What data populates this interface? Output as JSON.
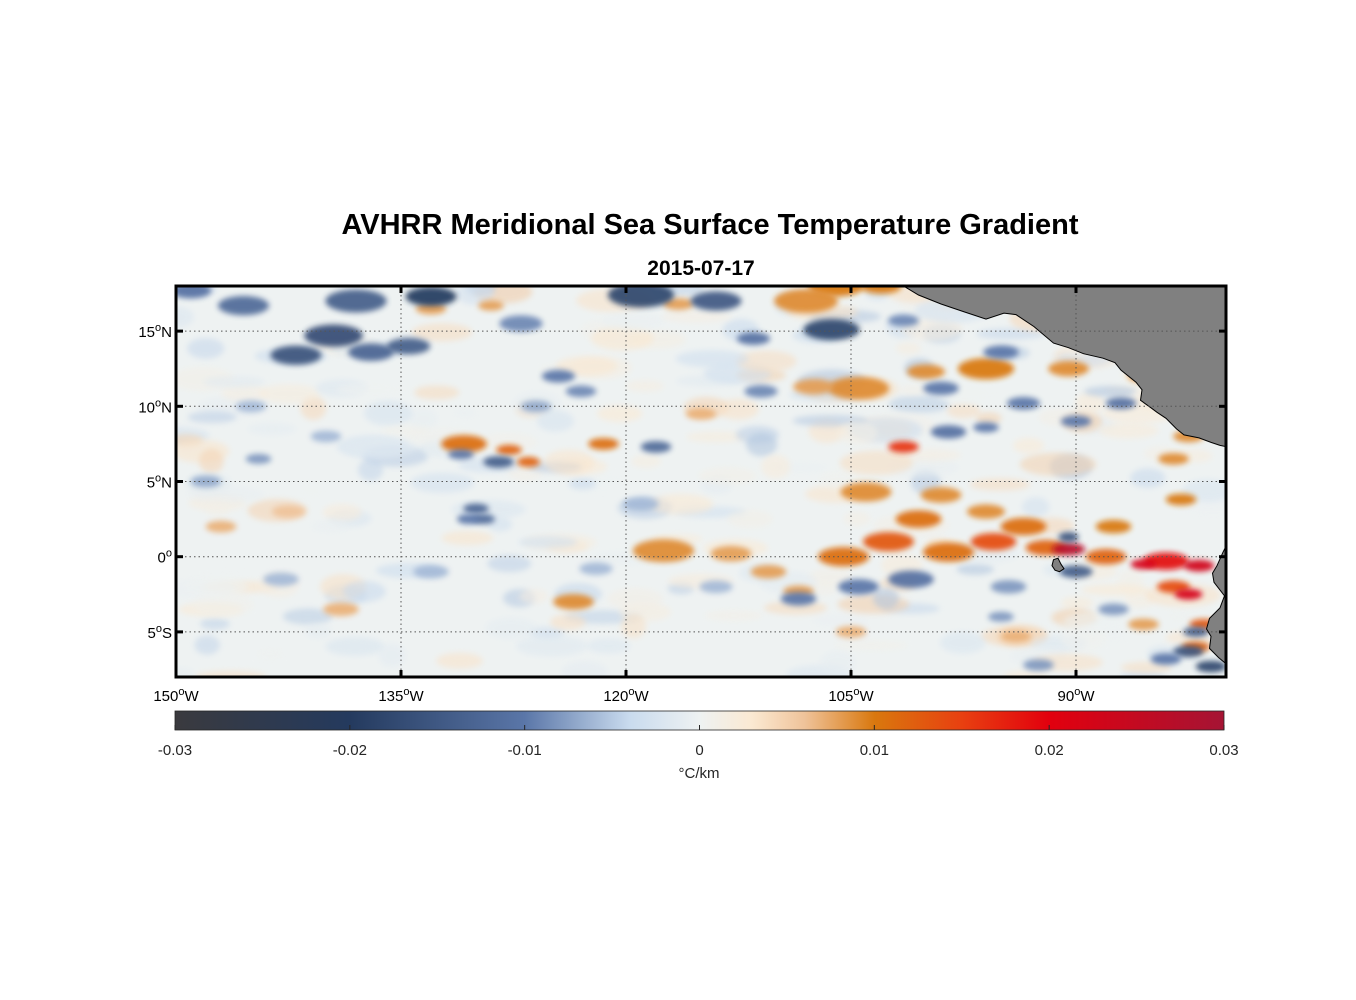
{
  "title": "AVHRR Meridional Sea Surface Temperature Gradient",
  "subtitle": "2015-07-17",
  "map": {
    "lon_range": [
      -150,
      -80
    ],
    "lat_range": [
      -8,
      18
    ],
    "grid": true,
    "land_color": "#808080",
    "lat_ticks": [
      {
        "value": 15,
        "label": "15",
        "sup": "o",
        "hemi": "N"
      },
      {
        "value": 10,
        "label": "10",
        "sup": "o",
        "hemi": "N"
      },
      {
        "value": 5,
        "label": "5",
        "sup": "o",
        "hemi": "N"
      },
      {
        "value": 0,
        "label": "0",
        "sup": "o",
        "hemi": ""
      },
      {
        "value": -5,
        "label": "5",
        "sup": "o",
        "hemi": "S"
      }
    ],
    "lon_ticks": [
      {
        "value": -150,
        "label": "150",
        "sup": "o",
        "hemi": "W"
      },
      {
        "value": -135,
        "label": "135",
        "sup": "o",
        "hemi": "W"
      },
      {
        "value": -120,
        "label": "120",
        "sup": "o",
        "hemi": "W"
      },
      {
        "value": -105,
        "label": "105",
        "sup": "o",
        "hemi": "W"
      },
      {
        "value": -90,
        "label": "90",
        "sup": "o",
        "hemi": "W"
      }
    ]
  },
  "colorbar": {
    "range": [
      -0.03,
      0.03
    ],
    "ticks": [
      "-0.03",
      "-0.02",
      "-0.01",
      "0",
      "0.01",
      "0.02",
      "0.03"
    ],
    "unit_label": "°C/km",
    "colors": [
      {
        "stop": -0.03,
        "color": "#3a3a3e"
      },
      {
        "stop": -0.02,
        "color": "#243a5e"
      },
      {
        "stop": -0.01,
        "color": "#5a76a8"
      },
      {
        "stop": -0.004,
        "color": "#c9dbee"
      },
      {
        "stop": 0,
        "color": "#eef2f2"
      },
      {
        "stop": 0.003,
        "color": "#fbe9d2"
      },
      {
        "stop": 0.006,
        "color": "#efc39a"
      },
      {
        "stop": 0.01,
        "color": "#d9780e"
      },
      {
        "stop": 0.015,
        "color": "#e84010"
      },
      {
        "stop": 0.02,
        "color": "#e2000e"
      },
      {
        "stop": 0.03,
        "color": "#a51434"
      }
    ]
  },
  "features": {
    "positive": [
      {
        "lon": -106.0,
        "lat": 18.0,
        "r": 2.2,
        "v": 0.01
      },
      {
        "lon": -103.0,
        "lat": 18.0,
        "r": 1.6,
        "v": 0.01
      },
      {
        "lon": -108.0,
        "lat": 17.0,
        "r": 2.5,
        "v": 0.009
      },
      {
        "lon": -96.0,
        "lat": 12.5,
        "r": 2.2,
        "v": 0.01
      },
      {
        "lon": -100.0,
        "lat": 12.3,
        "r": 1.5,
        "v": 0.009
      },
      {
        "lon": -90.5,
        "lat": 12.5,
        "r": 1.6,
        "v": 0.009
      },
      {
        "lon": -85.5,
        "lat": 12.0,
        "r": 1.2,
        "v": 0.009
      },
      {
        "lon": -104.5,
        "lat": 11.2,
        "r": 2.4,
        "v": 0.009
      },
      {
        "lon": -107.5,
        "lat": 11.3,
        "r": 1.6,
        "v": 0.008
      },
      {
        "lon": -85.5,
        "lat": 16.0,
        "r": 1.2,
        "v": 0.009
      },
      {
        "lon": -101.5,
        "lat": 7.3,
        "r": 1.2,
        "v": 0.016
      },
      {
        "lon": -83.5,
        "lat": 6.5,
        "r": 1.2,
        "v": 0.009
      },
      {
        "lon": -82.5,
        "lat": 8.0,
        "r": 1.2,
        "v": 0.009
      },
      {
        "lon": -130.8,
        "lat": 7.5,
        "r": 1.8,
        "v": 0.011
      },
      {
        "lon": -127.8,
        "lat": 7.1,
        "r": 1.0,
        "v": 0.012
      },
      {
        "lon": -126.5,
        "lat": 6.3,
        "r": 0.9,
        "v": 0.012
      },
      {
        "lon": -121.5,
        "lat": 7.5,
        "r": 1.2,
        "v": 0.011
      },
      {
        "lon": -104.0,
        "lat": 4.3,
        "r": 2.0,
        "v": 0.009
      },
      {
        "lon": -99.0,
        "lat": 4.1,
        "r": 1.6,
        "v": 0.009
      },
      {
        "lon": -96.0,
        "lat": 3.0,
        "r": 1.5,
        "v": 0.009
      },
      {
        "lon": -83.0,
        "lat": 3.8,
        "r": 1.2,
        "v": 0.01
      },
      {
        "lon": -100.5,
        "lat": 2.5,
        "r": 1.8,
        "v": 0.011
      },
      {
        "lon": -93.5,
        "lat": 2.0,
        "r": 1.8,
        "v": 0.011
      },
      {
        "lon": -87.5,
        "lat": 2.0,
        "r": 1.4,
        "v": 0.01
      },
      {
        "lon": -117.5,
        "lat": 0.4,
        "r": 2.4,
        "v": 0.009
      },
      {
        "lon": -113.0,
        "lat": 0.2,
        "r": 1.6,
        "v": 0.008
      },
      {
        "lon": -105.5,
        "lat": 0.0,
        "r": 2.0,
        "v": 0.011
      },
      {
        "lon": -102.5,
        "lat": 1.0,
        "r": 2.0,
        "v": 0.013
      },
      {
        "lon": -98.5,
        "lat": 0.3,
        "r": 2.0,
        "v": 0.011
      },
      {
        "lon": -95.5,
        "lat": 1.0,
        "r": 1.8,
        "v": 0.014
      },
      {
        "lon": -92.0,
        "lat": 0.6,
        "r": 1.6,
        "v": 0.012
      },
      {
        "lon": -90.5,
        "lat": 0.5,
        "r": 1.3,
        "v": 0.027
      },
      {
        "lon": -88.0,
        "lat": 0.0,
        "r": 1.6,
        "v": 0.012
      },
      {
        "lon": -84.0,
        "lat": -0.3,
        "r": 1.8,
        "v": 0.019
      },
      {
        "lon": -81.8,
        "lat": -0.6,
        "r": 1.2,
        "v": 0.023
      },
      {
        "lon": -85.5,
        "lat": -0.5,
        "r": 1.0,
        "v": 0.022
      },
      {
        "lon": -83.5,
        "lat": -2.0,
        "r": 1.3,
        "v": 0.014
      },
      {
        "lon": -82.5,
        "lat": -2.5,
        "r": 1.1,
        "v": 0.022
      },
      {
        "lon": -81.5,
        "lat": -4.5,
        "r": 1.1,
        "v": 0.013
      },
      {
        "lon": -82.0,
        "lat": -6.0,
        "r": 1.1,
        "v": 0.012
      },
      {
        "lon": -110.5,
        "lat": -1.0,
        "r": 1.4,
        "v": 0.008
      },
      {
        "lon": -108.5,
        "lat": -2.3,
        "r": 1.2,
        "v": 0.008
      },
      {
        "lon": -123.5,
        "lat": -3.0,
        "r": 1.6,
        "v": 0.009
      },
      {
        "lon": -147.0,
        "lat": 2.0,
        "r": 1.2,
        "v": 0.007
      },
      {
        "lon": -142.5,
        "lat": 3.0,
        "r": 1.3,
        "v": 0.006
      },
      {
        "lon": -139.0,
        "lat": -3.5,
        "r": 1.4,
        "v": 0.007
      },
      {
        "lon": -133.0,
        "lat": 16.5,
        "r": 1.2,
        "v": 0.008
      },
      {
        "lon": -129.0,
        "lat": 16.7,
        "r": 1.0,
        "v": 0.008
      },
      {
        "lon": -116.5,
        "lat": 16.8,
        "r": 1.2,
        "v": 0.008
      },
      {
        "lon": -115.0,
        "lat": 9.5,
        "r": 1.2,
        "v": 0.007
      },
      {
        "lon": -105.0,
        "lat": -5.0,
        "r": 1.2,
        "v": 0.007
      },
      {
        "lon": -94.0,
        "lat": -5.3,
        "r": 1.2,
        "v": 0.007
      },
      {
        "lon": -85.5,
        "lat": -4.5,
        "r": 1.2,
        "v": 0.008
      }
    ],
    "negative": [
      {
        "lon": -138.0,
        "lat": 17.0,
        "r": 2.4,
        "v": -0.014
      },
      {
        "lon": -133.0,
        "lat": 17.3,
        "r": 2.0,
        "v": -0.02
      },
      {
        "lon": -139.5,
        "lat": 14.7,
        "r": 2.3,
        "v": -0.017
      },
      {
        "lon": -142.0,
        "lat": 13.4,
        "r": 2.0,
        "v": -0.016
      },
      {
        "lon": -137.0,
        "lat": 13.6,
        "r": 1.8,
        "v": -0.013
      },
      {
        "lon": -134.5,
        "lat": 14.0,
        "r": 1.7,
        "v": -0.014
      },
      {
        "lon": -145.5,
        "lat": 16.7,
        "r": 2.0,
        "v": -0.012
      },
      {
        "lon": -149.0,
        "lat": 17.7,
        "r": 1.6,
        "v": -0.011
      },
      {
        "lon": -119.0,
        "lat": 17.4,
        "r": 2.6,
        "v": -0.018
      },
      {
        "lon": -114.0,
        "lat": 17.0,
        "r": 2.0,
        "v": -0.015
      },
      {
        "lon": -127.0,
        "lat": 15.5,
        "r": 1.7,
        "v": -0.009
      },
      {
        "lon": -124.5,
        "lat": 12.0,
        "r": 1.3,
        "v": -0.01
      },
      {
        "lon": -123.0,
        "lat": 11.0,
        "r": 1.2,
        "v": -0.009
      },
      {
        "lon": -111.5,
        "lat": 14.5,
        "r": 1.3,
        "v": -0.011
      },
      {
        "lon": -106.3,
        "lat": 15.1,
        "r": 2.2,
        "v": -0.018
      },
      {
        "lon": -101.5,
        "lat": 15.7,
        "r": 1.2,
        "v": -0.009
      },
      {
        "lon": -111.0,
        "lat": 11.0,
        "r": 1.3,
        "v": -0.009
      },
      {
        "lon": -99.0,
        "lat": 11.2,
        "r": 1.4,
        "v": -0.01
      },
      {
        "lon": -95.0,
        "lat": 13.6,
        "r": 1.4,
        "v": -0.01
      },
      {
        "lon": -93.5,
        "lat": 10.2,
        "r": 1.3,
        "v": -0.01
      },
      {
        "lon": -87.0,
        "lat": 10.2,
        "r": 1.2,
        "v": -0.011
      },
      {
        "lon": -98.5,
        "lat": 8.3,
        "r": 1.4,
        "v": -0.011
      },
      {
        "lon": -96.0,
        "lat": 8.6,
        "r": 1.0,
        "v": -0.01
      },
      {
        "lon": -90.0,
        "lat": 9.0,
        "r": 1.2,
        "v": -0.01
      },
      {
        "lon": -128.5,
        "lat": 6.3,
        "r": 1.2,
        "v": -0.014
      },
      {
        "lon": -131.0,
        "lat": 6.8,
        "r": 1.0,
        "v": -0.01
      },
      {
        "lon": -118.0,
        "lat": 7.3,
        "r": 1.2,
        "v": -0.012
      },
      {
        "lon": -130.0,
        "lat": 3.2,
        "r": 1.0,
        "v": -0.013
      },
      {
        "lon": -129.5,
        "lat": 2.5,
        "r": 0.9,
        "v": -0.012
      },
      {
        "lon": -130.5,
        "lat": 2.5,
        "r": 0.9,
        "v": -0.01
      },
      {
        "lon": -90.5,
        "lat": 1.3,
        "r": 0.8,
        "v": -0.016
      },
      {
        "lon": -90.0,
        "lat": -1.0,
        "r": 1.3,
        "v": -0.014
      },
      {
        "lon": -101.0,
        "lat": -1.5,
        "r": 1.8,
        "v": -0.011
      },
      {
        "lon": -104.5,
        "lat": -2.0,
        "r": 1.6,
        "v": -0.01
      },
      {
        "lon": -108.5,
        "lat": -2.8,
        "r": 1.4,
        "v": -0.01
      },
      {
        "lon": -94.5,
        "lat": -2.0,
        "r": 1.4,
        "v": -0.008
      },
      {
        "lon": -82.0,
        "lat": -5.0,
        "r": 1.0,
        "v": -0.014
      },
      {
        "lon": -82.5,
        "lat": -6.3,
        "r": 1.2,
        "v": -0.016
      },
      {
        "lon": -81.0,
        "lat": -7.3,
        "r": 1.2,
        "v": -0.018
      },
      {
        "lon": -84.0,
        "lat": -6.8,
        "r": 1.2,
        "v": -0.01
      },
      {
        "lon": -92.5,
        "lat": -7.2,
        "r": 1.2,
        "v": -0.008
      },
      {
        "lon": -148.0,
        "lat": 5.0,
        "r": 1.2,
        "v": -0.007
      },
      {
        "lon": -144.5,
        "lat": 6.5,
        "r": 1.0,
        "v": -0.008
      },
      {
        "lon": -140.0,
        "lat": 8.0,
        "r": 1.2,
        "v": -0.006
      },
      {
        "lon": -143.0,
        "lat": -1.5,
        "r": 1.4,
        "v": -0.006
      },
      {
        "lon": -133.0,
        "lat": -1.0,
        "r": 1.4,
        "v": -0.006
      },
      {
        "lon": -122.0,
        "lat": -0.8,
        "r": 1.3,
        "v": -0.006
      },
      {
        "lon": -114.0,
        "lat": -2.0,
        "r": 1.3,
        "v": -0.006
      },
      {
        "lon": -119.0,
        "lat": 3.5,
        "r": 1.4,
        "v": -0.006
      },
      {
        "lon": -126.0,
        "lat": 10.0,
        "r": 1.2,
        "v": -0.007
      },
      {
        "lon": -145.0,
        "lat": 10.0,
        "r": 1.2,
        "v": -0.006
      },
      {
        "lon": -95.0,
        "lat": -4.0,
        "r": 1.0,
        "v": -0.008
      },
      {
        "lon": -87.5,
        "lat": -3.5,
        "r": 1.2,
        "v": -0.008
      }
    ]
  }
}
